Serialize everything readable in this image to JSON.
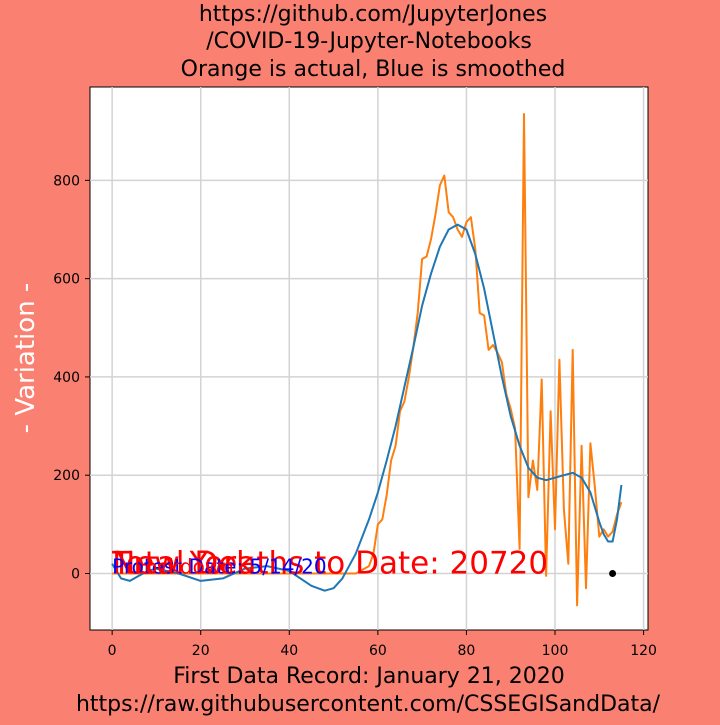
{
  "colors": {
    "figure_bg": "#fa8072",
    "plot_bg": "#ffffff",
    "grid": "#d3d3d3",
    "smoothed": "#1f77b4",
    "actual": "#ff7f0e",
    "overlay_red": "#ff0000",
    "overlay_blue": "#0000ff",
    "marker": "#000000"
  },
  "chart_data": {
    "type": "line",
    "title_lines": [
      "https://github.com/JupyterJones",
      "/COVID-19-Jupyter-Notebooks",
      "Orange is actual, Blue is smoothed"
    ],
    "ylabel": "- Variation -",
    "xlabel_lines": [
      "First Data Record: January 21, 2020",
      "https://raw.githubusercontent.com/CSSEGISandData/"
    ],
    "xlim": [
      -5,
      121
    ],
    "ylim": [
      -115,
      990
    ],
    "xticks": [
      0,
      20,
      40,
      60,
      80,
      100,
      120
    ],
    "yticks": [
      0,
      200,
      400,
      600,
      800
    ],
    "grid": true,
    "annotations": [
      {
        "text": "New York",
        "x": 0,
        "y": 0,
        "color": "red",
        "size": "large"
      },
      {
        "text": "Total Deaths to Date: 20720",
        "x": 0,
        "y": 0,
        "color": "red",
        "size": "large"
      },
      {
        "text": "Protest Date: 5/14/20",
        "x": 0,
        "y": 0,
        "color": "blue",
        "size": "small"
      },
      {
        "text": "Lockdown",
        "x": 5,
        "y": 0,
        "color": "red",
        "size": "small"
      }
    ],
    "marker_point": {
      "x": 113,
      "y": 0
    },
    "series": [
      {
        "key": "actual",
        "x": [
          0,
          5,
          10,
          20,
          30,
          40,
          50,
          55,
          58,
          59,
          60,
          61,
          62,
          63,
          64,
          65,
          66,
          67,
          68,
          69,
          70,
          71,
          72,
          73,
          74,
          75,
          76,
          77,
          78,
          79,
          80,
          81,
          82,
          83,
          84,
          85,
          86,
          87,
          88,
          89,
          90,
          91,
          92,
          93,
          94,
          95,
          96,
          97,
          98,
          99,
          100,
          101,
          102,
          103,
          104,
          105,
          106,
          107,
          108,
          109,
          110,
          111,
          112,
          113,
          114,
          115
        ],
        "y": [
          0,
          0,
          0,
          0,
          0,
          0,
          0,
          0,
          15,
          40,
          100,
          110,
          160,
          230,
          260,
          330,
          350,
          400,
          460,
          530,
          640,
          645,
          680,
          730,
          790,
          810,
          735,
          725,
          700,
          685,
          715,
          725,
          660,
          530,
          525,
          455,
          465,
          450,
          430,
          365,
          335,
          295,
          50,
          935,
          155,
          230,
          170,
          395,
          -5,
          330,
          90,
          435,
          130,
          20,
          455,
          -65,
          260,
          -30,
          265,
          175,
          75,
          90,
          75,
          85,
          120,
          145
        ]
      },
      {
        "key": "smoothed",
        "x": [
          0,
          2,
          4,
          6,
          8,
          10,
          15,
          20,
          25,
          30,
          35,
          40,
          45,
          48,
          50,
          52,
          55,
          58,
          60,
          62,
          64,
          66,
          68,
          70,
          72,
          74,
          76,
          78,
          80,
          82,
          84,
          86,
          88,
          90,
          92,
          94,
          96,
          98,
          100,
          102,
          104,
          106,
          108,
          110,
          111,
          112,
          113,
          114,
          115
        ],
        "y": [
          20,
          -10,
          -15,
          -5,
          5,
          10,
          0,
          -15,
          -10,
          10,
          15,
          5,
          -25,
          -35,
          -30,
          -10,
          40,
          110,
          165,
          230,
          300,
          380,
          460,
          545,
          610,
          665,
          700,
          710,
          700,
          650,
          580,
          490,
          400,
          320,
          260,
          215,
          195,
          190,
          195,
          200,
          205,
          195,
          165,
          105,
          80,
          65,
          65,
          110,
          180
        ]
      }
    ]
  }
}
